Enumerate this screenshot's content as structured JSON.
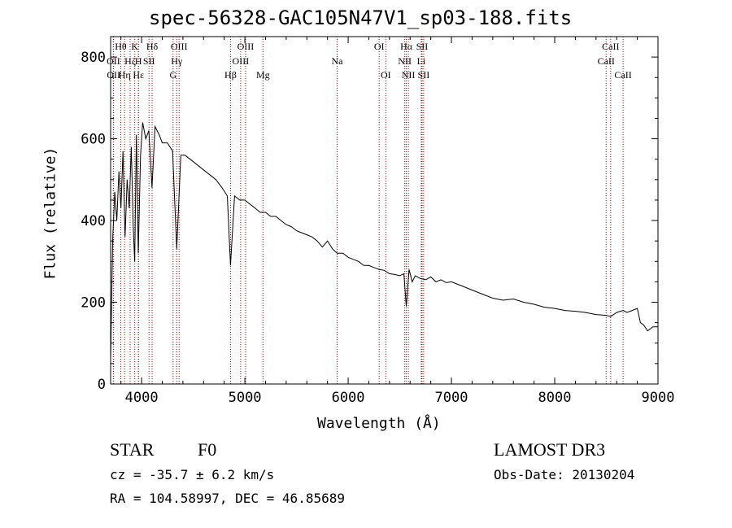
{
  "chart_data": {
    "type": "line",
    "title": "spec-56328-GAC105N47V1_sp03-188.fits",
    "xlabel": "Wavelength (Å)",
    "ylabel": "Flux (relative)",
    "xlim": [
      3700,
      9000
    ],
    "ylim": [
      0,
      850
    ],
    "xticks": [
      4000,
      5000,
      6000,
      7000,
      8000,
      9000
    ],
    "yticks": [
      0,
      200,
      400,
      600,
      800
    ],
    "line_color": "#000000",
    "marker_color": "#aa0000",
    "series": [
      {
        "name": "flux",
        "x": [
          3700,
          3720,
          3740,
          3760,
          3780,
          3800,
          3820,
          3840,
          3860,
          3880,
          3900,
          3920,
          3933,
          3950,
          3968,
          3990,
          4010,
          4040,
          4070,
          4101,
          4130,
          4170,
          4200,
          4250,
          4300,
          4340,
          4380,
          4420,
          4470,
          4520,
          4570,
          4620,
          4670,
          4720,
          4780,
          4830,
          4861,
          4900,
          4950,
          5000,
          5050,
          5100,
          5150,
          5200,
          5250,
          5300,
          5350,
          5400,
          5450,
          5500,
          5550,
          5600,
          5650,
          5700,
          5750,
          5800,
          5850,
          5893,
          5950,
          6000,
          6050,
          6100,
          6150,
          6200,
          6250,
          6300,
          6350,
          6400,
          6450,
          6500,
          6540,
          6563,
          6590,
          6620,
          6650,
          6700,
          6750,
          6800,
          6850,
          6900,
          6950,
          7000,
          7100,
          7200,
          7300,
          7400,
          7500,
          7600,
          7700,
          7800,
          7900,
          8000,
          8100,
          8200,
          8300,
          8400,
          8498,
          8542,
          8600,
          8662,
          8700,
          8750,
          8800,
          8830,
          8860,
          8900,
          8950,
          9000
        ],
        "y": [
          60,
          350,
          470,
          400,
          520,
          430,
          570,
          360,
          500,
          430,
          580,
          380,
          300,
          610,
          320,
          560,
          640,
          600,
          620,
          480,
          630,
          610,
          590,
          590,
          570,
          330,
          560,
          560,
          550,
          540,
          530,
          520,
          510,
          500,
          480,
          460,
          290,
          460,
          450,
          450,
          440,
          430,
          420,
          420,
          410,
          410,
          400,
          390,
          385,
          375,
          370,
          365,
          360,
          350,
          335,
          350,
          330,
          320,
          320,
          310,
          305,
          300,
          290,
          290,
          285,
          280,
          278,
          270,
          268,
          265,
          270,
          190,
          280,
          250,
          265,
          258,
          255,
          262,
          250,
          255,
          248,
          250,
          240,
          230,
          220,
          210,
          205,
          208,
          200,
          195,
          188,
          185,
          180,
          178,
          175,
          170,
          168,
          165,
          175,
          180,
          175,
          180,
          185,
          150,
          145,
          130,
          140,
          140
        ]
      }
    ],
    "line_markers": [
      {
        "label": "Hθ",
        "wavelength": 3798,
        "row": 0
      },
      {
        "label": "OII",
        "wavelength": 3727,
        "row": 1
      },
      {
        "label": "OII",
        "wavelength": 3729,
        "row": 2
      },
      {
        "label": "Hη",
        "wavelength": 3835,
        "row": 2
      },
      {
        "label": "Hζ",
        "wavelength": 3889,
        "row": 1
      },
      {
        "label": "Hε",
        "wavelength": 3970,
        "row": 2
      },
      {
        "label": "K",
        "wavelength": 3934,
        "row": 0
      },
      {
        "label": "H",
        "wavelength": 3969,
        "row": 1
      },
      {
        "label": "SII",
        "wavelength": 4072,
        "row": 1
      },
      {
        "label": "Hδ",
        "wavelength": 4102,
        "row": 0
      },
      {
        "label": "OIII",
        "wavelength": 4363,
        "row": 0
      },
      {
        "label": "Hγ",
        "wavelength": 4340,
        "row": 1
      },
      {
        "label": "G",
        "wavelength": 4305,
        "row": 2
      },
      {
        "label": "Hβ",
        "wavelength": 4861,
        "row": 2
      },
      {
        "label": "OIII",
        "wavelength": 5007,
        "row": 0
      },
      {
        "label": "OIII",
        "wavelength": 4959,
        "row": 1
      },
      {
        "label": "Mg",
        "wavelength": 5175,
        "row": 2
      },
      {
        "label": "Na",
        "wavelength": 5893,
        "row": 1
      },
      {
        "label": "OI",
        "wavelength": 6300,
        "row": 0
      },
      {
        "label": "OI",
        "wavelength": 6364,
        "row": 2
      },
      {
        "label": "Hα",
        "wavelength": 6563,
        "row": 0
      },
      {
        "label": "NII",
        "wavelength": 6548,
        "row": 1
      },
      {
        "label": "NII",
        "wavelength": 6583,
        "row": 2
      },
      {
        "label": "SII",
        "wavelength": 6716,
        "row": 0
      },
      {
        "label": "Li",
        "wavelength": 6708,
        "row": 1
      },
      {
        "label": "SII",
        "wavelength": 6731,
        "row": 2
      },
      {
        "label": "CaII",
        "wavelength": 8542,
        "row": 0
      },
      {
        "label": "CaII",
        "wavelength": 8498,
        "row": 1
      },
      {
        "label": "CaII",
        "wavelength": 8662,
        "row": 2
      }
    ]
  },
  "info": {
    "object_class": "STAR",
    "subclass": "F0",
    "survey": "LAMOST DR3",
    "redshift": "cz = -35.7 ± 6.2 km/s",
    "obs_date": "Obs-Date: 20130204",
    "coords": "RA = 104.58997, DEC =  46.85689"
  }
}
